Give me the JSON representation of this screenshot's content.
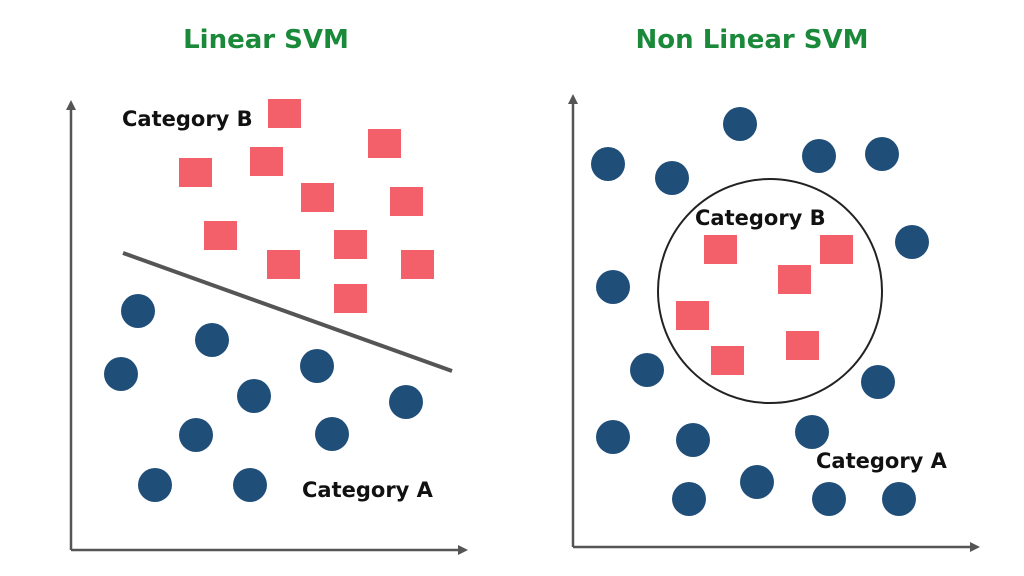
{
  "titles": {
    "left": "Linear SVM",
    "right": "Non Linear SVM"
  },
  "labels": {
    "category_a": "Category A",
    "category_b": "Category B"
  },
  "colors": {
    "title": "#1a8a3a",
    "category_a": "#1f4e79",
    "category_b": "#f4606a",
    "axis": "#555555",
    "separator": "#555555",
    "boundary": "#222222"
  }
}
